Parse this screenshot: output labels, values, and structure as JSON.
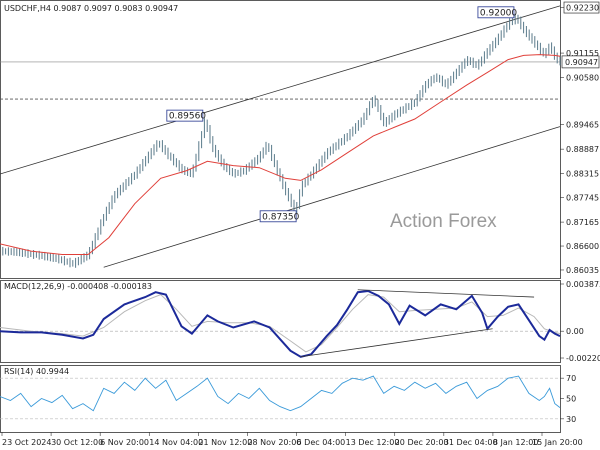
{
  "chart_data": [
    {
      "type": "candlestick",
      "symbol": "USDCHF,H4",
      "ohlc_header": "USDCHF,H4  0.9087 0.9097 0.9083 0.90947",
      "ylim": [
        0.8594,
        0.9229
      ],
      "y_ticks": [
        "0.92230",
        "0.91155",
        "0.90580",
        "0.89465",
        "0.88887",
        "0.88315",
        "0.87745",
        "0.87165",
        "0.86600",
        "0.86035"
      ],
      "current_price": "0.90947",
      "support_level": "0.90070",
      "resistance_level": "0.92230",
      "annotations": [
        {
          "label": "0.92000",
          "date": "9 Jan 2025",
          "price": 0.92
        },
        {
          "label": "0.89560",
          "date": "22 Nov 2024",
          "price": 0.8956
        },
        {
          "label": "0.87350",
          "date": "6 Dec 2024",
          "price": 0.8735
        }
      ],
      "price_path": [
        [
          0,
          0.8648
        ],
        [
          3,
          0.8646
        ],
        [
          8,
          0.8637
        ],
        [
          11,
          0.863
        ],
        [
          14,
          0.8618
        ],
        [
          17,
          0.864
        ],
        [
          20,
          0.873
        ],
        [
          22,
          0.878
        ],
        [
          26,
          0.883
        ],
        [
          29,
          0.888
        ],
        [
          30.5,
          0.8905
        ],
        [
          32,
          0.888
        ],
        [
          35,
          0.884
        ],
        [
          37,
          0.883
        ],
        [
          39.5,
          0.8956
        ],
        [
          41,
          0.889
        ],
        [
          43,
          0.885
        ],
        [
          45,
          0.883
        ],
        [
          47,
          0.8838
        ],
        [
          50,
          0.887
        ],
        [
          51.5,
          0.89
        ],
        [
          53,
          0.885
        ],
        [
          55,
          0.879
        ],
        [
          57,
          0.874
        ],
        [
          58,
          0.88
        ],
        [
          60,
          0.883
        ],
        [
          63,
          0.888
        ],
        [
          65,
          0.89
        ],
        [
          67,
          0.892
        ],
        [
          70,
          0.896
        ],
        [
          72,
          0.901
        ],
        [
          74,
          0.895
        ],
        [
          76,
          0.897
        ],
        [
          80,
          0.9
        ],
        [
          82,
          0.904
        ],
        [
          84,
          0.906
        ],
        [
          86,
          0.904
        ],
        [
          88,
          0.907
        ],
        [
          90,
          0.91
        ],
        [
          92,
          0.9085
        ],
        [
          94,
          0.912
        ],
        [
          96,
          0.915
        ],
        [
          98,
          0.9185
        ],
        [
          99.5,
          0.92
        ],
        [
          101,
          0.917
        ],
        [
          103,
          0.914
        ],
        [
          105,
          0.911
        ],
        [
          106,
          0.9135
        ],
        [
          107,
          0.9105
        ],
        [
          108,
          0.9095
        ]
      ],
      "sma_path": [
        [
          0,
          0.8665
        ],
        [
          6,
          0.8648
        ],
        [
          12,
          0.864
        ],
        [
          17,
          0.864
        ],
        [
          21,
          0.868
        ],
        [
          26,
          0.876
        ],
        [
          31,
          0.882
        ],
        [
          36,
          0.8838
        ],
        [
          40,
          0.886
        ],
        [
          45,
          0.885
        ],
        [
          50,
          0.8845
        ],
        [
          55,
          0.882
        ],
        [
          58,
          0.8815
        ],
        [
          62,
          0.884
        ],
        [
          67,
          0.888
        ],
        [
          72,
          0.892
        ],
        [
          76,
          0.894
        ],
        [
          80,
          0.896
        ],
        [
          85,
          0.9
        ],
        [
          90,
          0.904
        ],
        [
          94,
          0.907
        ],
        [
          98,
          0.91
        ],
        [
          101,
          0.911
        ],
        [
          104,
          0.9112
        ],
        [
          107,
          0.911
        ],
        [
          108,
          0.9108
        ]
      ],
      "channel_upper": [
        [
          0,
          0.883
        ],
        [
          108,
          0.9227
        ]
      ],
      "channel_lower": [
        [
          20,
          0.861
        ],
        [
          108,
          0.8942
        ]
      ],
      "x_labels": [
        "23 Oct 2024",
        "30 Oct 12:00",
        "6 Nov 20:00",
        "14 Nov 04:00",
        "21 Nov 12:00",
        "28 Nov 20:00",
        "6 Dec 04:00",
        "13 Dec 12:00",
        "20 Dec 20:00",
        "31 Dec 04:00",
        "8 Jan 12:00",
        "15 Jan 20:00"
      ],
      "watermark": "Action Forex"
    },
    {
      "type": "line",
      "title": "MACD(12,26,9) -0.000408 -0.000183",
      "ylim": [
        -0.0022,
        0.003873
      ],
      "y_ticks": [
        "0.003873",
        "0.00",
        "-0.002201"
      ],
      "series": [
        {
          "values": [
            [
              0,
              0.0
            ],
            [
              4,
              -0.0001
            ],
            [
              8,
              -0.0001
            ],
            [
              12,
              -0.0003
            ],
            [
              16,
              -0.0006
            ],
            [
              18,
              -0.0003
            ],
            [
              20,
              0.001
            ],
            [
              24,
              0.0022
            ],
            [
              28,
              0.0028
            ],
            [
              30,
              0.0032
            ],
            [
              32,
              0.003
            ],
            [
              35,
              0.0004
            ],
            [
              37,
              -0.0002
            ],
            [
              40,
              0.0013
            ],
            [
              42,
              0.0008
            ],
            [
              45,
              0.0003
            ],
            [
              49,
              0.0008
            ],
            [
              52,
              0.0003
            ],
            [
              56,
              -0.0016
            ],
            [
              58,
              -0.0021
            ],
            [
              60,
              -0.0019
            ],
            [
              63,
              -0.0004
            ],
            [
              65,
              0.0005
            ],
            [
              67,
              0.0018
            ],
            [
              69,
              0.0032
            ],
            [
              71,
              0.0033
            ],
            [
              73,
              0.0029
            ],
            [
              75,
              0.0022
            ],
            [
              77,
              0.0006
            ],
            [
              79,
              0.0021
            ],
            [
              82,
              0.0013
            ],
            [
              85,
              0.0022
            ],
            [
              88,
              0.0018
            ],
            [
              91,
              0.0029
            ],
            [
              93,
              0.0015
            ],
            [
              94,
              0.0002
            ],
            [
              96,
              0.0012
            ],
            [
              98,
              0.002
            ],
            [
              100,
              0.0022
            ],
            [
              102,
              0.0009
            ],
            [
              104,
              -0.0004
            ],
            [
              105,
              -0.0007
            ],
            [
              106,
              0.0001
            ],
            [
              107,
              -0.0002
            ],
            [
              108,
              -0.0004
            ]
          ]
        },
        {
          "values": [
            [
              0,
              0.0003
            ],
            [
              6,
              0.0
            ],
            [
              12,
              -0.0002
            ],
            [
              16,
              -0.0004
            ],
            [
              20,
              0.0003
            ],
            [
              24,
              0.0016
            ],
            [
              28,
              0.0025
            ],
            [
              31,
              0.003
            ],
            [
              34,
              0.0018
            ],
            [
              37,
              0.0004
            ],
            [
              40,
              0.0008
            ],
            [
              44,
              0.0007
            ],
            [
              48,
              0.0007
            ],
            [
              52,
              0.0004
            ],
            [
              56,
              -0.0008
            ],
            [
              59,
              -0.0017
            ],
            [
              62,
              -0.0011
            ],
            [
              65,
              0.0003
            ],
            [
              68,
              0.0018
            ],
            [
              71,
              0.003
            ],
            [
              74,
              0.0028
            ],
            [
              77,
              0.0016
            ],
            [
              80,
              0.0017
            ],
            [
              84,
              0.0018
            ],
            [
              88,
              0.0019
            ],
            [
              91,
              0.0024
            ],
            [
              94,
              0.0012
            ],
            [
              97,
              0.0013
            ],
            [
              100,
              0.0019
            ],
            [
              103,
              0.0012
            ],
            [
              105,
              0.0002
            ],
            [
              107,
              -0.0001
            ],
            [
              108,
              -0.0002
            ]
          ]
        }
      ],
      "trendlines": [
        [
          [
            58,
            -0.0021
          ],
          [
            95,
            0.0002
          ]
        ],
        [
          [
            69,
            0.0034
          ],
          [
            103,
            0.0028
          ]
        ]
      ]
    },
    {
      "type": "line",
      "title": "RSI(14) 40.9944",
      "ylim": [
        20,
        80
      ],
      "y_ticks": [
        "70",
        "50",
        "30"
      ],
      "series": [
        {
          "values": [
            [
              0,
              52
            ],
            [
              2,
              48
            ],
            [
              4,
              55
            ],
            [
              6,
              42
            ],
            [
              8,
              50
            ],
            [
              10,
              46
            ],
            [
              12,
              53
            ],
            [
              14,
              40
            ],
            [
              16,
              45
            ],
            [
              18,
              38
            ],
            [
              20,
              60
            ],
            [
              22,
              55
            ],
            [
              24,
              66
            ],
            [
              26,
              58
            ],
            [
              28,
              70
            ],
            [
              30,
              60
            ],
            [
              32,
              68
            ],
            [
              34,
              48
            ],
            [
              36,
              55
            ],
            [
              38,
              62
            ],
            [
              40,
              70
            ],
            [
              42,
              52
            ],
            [
              44,
              45
            ],
            [
              46,
              55
            ],
            [
              48,
              50
            ],
            [
              50,
              60
            ],
            [
              52,
              48
            ],
            [
              54,
              42
            ],
            [
              56,
              38
            ],
            [
              58,
              42
            ],
            [
              60,
              50
            ],
            [
              62,
              58
            ],
            [
              64,
              55
            ],
            [
              66,
              65
            ],
            [
              68,
              70
            ],
            [
              70,
              68
            ],
            [
              72,
              72
            ],
            [
              74,
              55
            ],
            [
              76,
              62
            ],
            [
              78,
              58
            ],
            [
              80,
              66
            ],
            [
              82,
              60
            ],
            [
              84,
              65
            ],
            [
              86,
              55
            ],
            [
              88,
              62
            ],
            [
              90,
              66
            ],
            [
              92,
              50
            ],
            [
              94,
              58
            ],
            [
              96,
              62
            ],
            [
              98,
              70
            ],
            [
              100,
              72
            ],
            [
              102,
              55
            ],
            [
              104,
              48
            ],
            [
              105,
              52
            ],
            [
              106,
              60
            ],
            [
              107,
              45
            ],
            [
              108,
              41
            ]
          ]
        }
      ]
    }
  ]
}
